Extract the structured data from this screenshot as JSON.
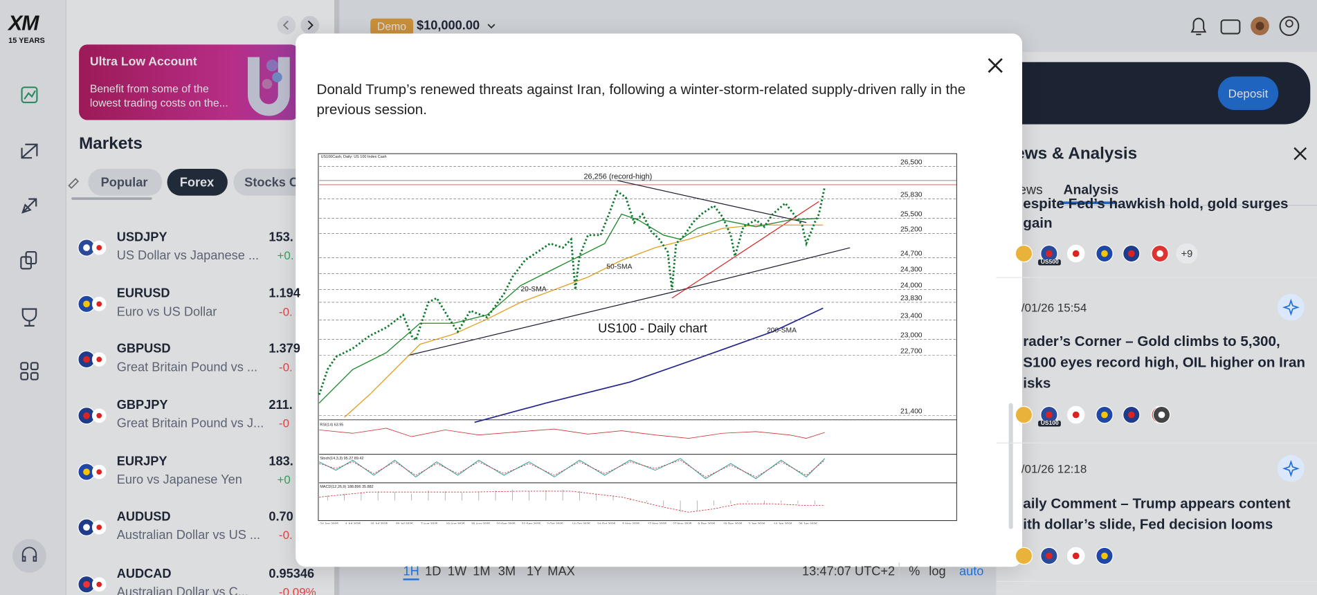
{
  "sidebar": {
    "logo": "XM",
    "logo_sub": "15 YEARS"
  },
  "banner": {
    "title": "Ultra Low Account",
    "lines": [
      "Benefit from some of the",
      "lowest trading costs on the..."
    ]
  },
  "markets": {
    "title": "Markets",
    "tabs": [
      "Popular",
      "Forex",
      "Stocks C"
    ],
    "rows": [
      {
        "symbol": "USDJPY",
        "name": "US Dollar vs Japanese ...",
        "price": "153.",
        "change": "+0."
      },
      {
        "symbol": "EURUSD",
        "name": "Euro vs US Dollar",
        "price": "1.194",
        "change": "-0."
      },
      {
        "symbol": "GBPUSD",
        "name": "Great Britain Pound vs ...",
        "price": "1.379",
        "change": "-0."
      },
      {
        "symbol": "GBPJPY",
        "name": "Great Britain Pound vs J...",
        "price": "211.",
        "change": "-0"
      },
      {
        "symbol": "EURJPY",
        "name": "Euro vs Japanese Yen",
        "price": "183.",
        "change": "+0"
      },
      {
        "symbol": "AUDUSD",
        "name": "Australian Dollar vs US ...",
        "price": "0.70",
        "change": "-0."
      },
      {
        "symbol": "AUDCAD",
        "name": "Australian Dollar vs C...",
        "price": "0.95346",
        "change": "-0.09%"
      }
    ]
  },
  "topbar": {
    "badge": "Demo",
    "balance": "$10,000.00"
  },
  "right_panel": {
    "deposit": "Deposit",
    "title": "ews & Analysis",
    "tabs": [
      "ews",
      "Analysis"
    ],
    "items": [
      {
        "lines": [
          "espite Fed’s hawkish hold, gold surges",
          "gain"
        ],
        "badges": [
          "US500"
        ],
        "more": "+9"
      },
      {
        "date": "/01/26 15:54",
        "lines": [
          "rader’s Corner – Gold climbs to 5,300,",
          "S100 eyes record high, OIL higher on Iran",
          "isks"
        ],
        "badges": [
          "US100"
        ]
      },
      {
        "date": "/01/26 12:18",
        "lines": [
          "aily Comment – Trump appears content",
          "ith dollar’s slide, Fed decision looms"
        ]
      }
    ]
  },
  "modal": {
    "paragraph": "Donald Trump’s renewed threats against Iran, following a winter-storm-related supply-driven rally in the previous session.",
    "figure": {
      "header": "US100Cash, Daily: US 100 Index Cash",
      "title": "US100 - Daily chart",
      "record_label": "26,256 (record-high)",
      "sma_labels": [
        "20-SMA",
        "50-SMA",
        "200-SMA"
      ],
      "levels": [
        "26,500",
        "25,830",
        "25,500",
        "25,200",
        "24,700",
        "24,300",
        "24,000",
        "23,830",
        "23,400",
        "23,000",
        "22,700",
        "21,400"
      ],
      "indicators": [
        "RSI(14) 63.95",
        "Stoch(14,3,3) 95.27 89.42",
        "MACD(12,26,9) 188.896 35.882"
      ],
      "dates": [
        "24 Jun 2025",
        "4 Jul 2025",
        "16 Jul 2025",
        "28 Jul 2025",
        "7 Aug 2025",
        "19 Aug 2025",
        "29 Aug 2025",
        "10 Sep 2025",
        "22 Sep 2025",
        "2 Oct 2025",
        "14 Oct 2025",
        "24 Oct 2025",
        "5 Nov 2025",
        "17 Nov 2025",
        "27 Nov 2025",
        "9 Dec 2025",
        "19 Dec 2025",
        "2 Jan 2026",
        "14 Jan 2026",
        "26 Jan 2026"
      ]
    }
  },
  "timebar": {
    "ranges": [
      "1H",
      "1D",
      "1W",
      "1M",
      "3M",
      "1Y",
      "MAX"
    ],
    "time": "13:47:07 UTC+2",
    "options": [
      "%",
      "log",
      "auto"
    ]
  }
}
